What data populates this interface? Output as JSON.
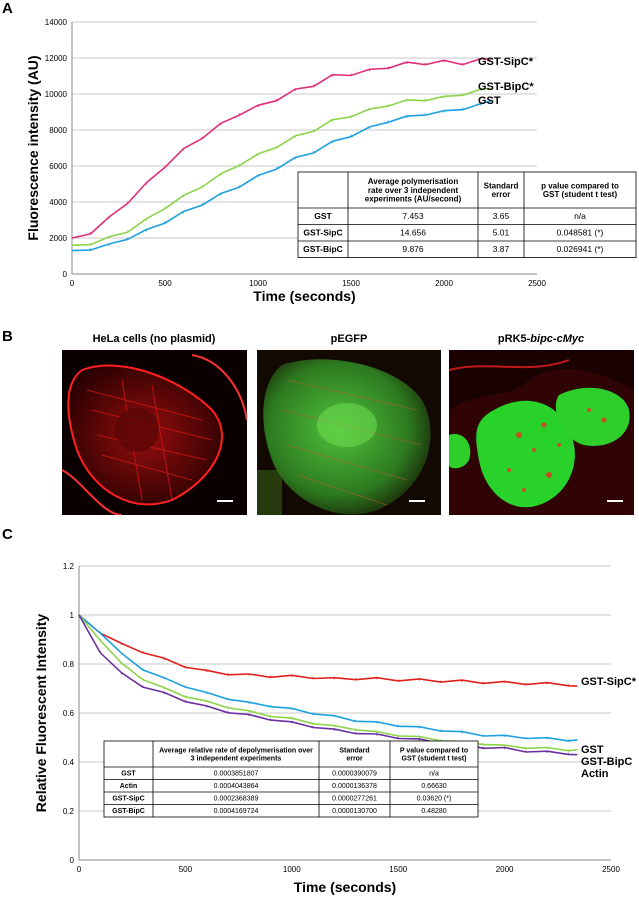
{
  "figure": {
    "panels": {
      "a": "A",
      "b": "B",
      "c": "C"
    }
  },
  "colors": {
    "magenta": "#e0307a",
    "green": "#8cd44a",
    "blue": "#1ea0e0",
    "red": "#e0201c",
    "purple": "#6a2fa0",
    "grid": "#c8c8c8"
  },
  "chart_data": [
    {
      "type": "line",
      "panel": "A",
      "title": "",
      "xlabel": "Time (seconds)",
      "ylabel": "Fluorescence intensity (AU)",
      "xlim": [
        0,
        2500
      ],
      "ylim": [
        0,
        14000
      ],
      "x_ticks": [
        "0",
        "500",
        "1000",
        "1500",
        "2000",
        "2500"
      ],
      "y_ticks": [
        "0",
        "2000",
        "4000",
        "6000",
        "8000",
        "10000",
        "12000",
        "14000"
      ],
      "series": [
        {
          "name": "GST-SipC*",
          "color": "#e0307a",
          "x": [
            0,
            100,
            200,
            300,
            400,
            500,
            600,
            700,
            800,
            900,
            1000,
            1100,
            1200,
            1300,
            1400,
            1500,
            1600,
            1700,
            1800,
            1900,
            2000,
            2100,
            2200,
            2250
          ],
          "y": [
            2000,
            2300,
            3100,
            4000,
            5000,
            6000,
            6900,
            7600,
            8300,
            8900,
            9300,
            9700,
            10200,
            10500,
            11000,
            11100,
            11300,
            11500,
            11700,
            11700,
            11800,
            11700,
            11900,
            11900
          ]
        },
        {
          "name": "GST-BipC*",
          "color": "#8cd44a",
          "x": [
            0,
            100,
            200,
            300,
            400,
            500,
            600,
            700,
            800,
            900,
            1000,
            1100,
            1200,
            1300,
            1400,
            1500,
            1600,
            1700,
            1800,
            1900,
            2000,
            2100,
            2200,
            2250
          ],
          "y": [
            1600,
            1700,
            2000,
            2400,
            3000,
            3700,
            4300,
            4900,
            5500,
            6100,
            6600,
            7100,
            7600,
            8000,
            8500,
            8800,
            9100,
            9400,
            9600,
            9700,
            9800,
            10000,
            10200,
            10300
          ]
        },
        {
          "name": "GST",
          "color": "#1ea0e0",
          "x": [
            0,
            100,
            200,
            300,
            400,
            500,
            600,
            700,
            800,
            900,
            1000,
            1100,
            1200,
            1300,
            1400,
            1500,
            1600,
            1700,
            1800,
            1900,
            2000,
            2100,
            2200,
            2250
          ],
          "y": [
            1300,
            1400,
            1600,
            2000,
            2400,
            2900,
            3400,
            3900,
            4400,
            4900,
            5400,
            5900,
            6400,
            6800,
            7300,
            7700,
            8100,
            8500,
            8700,
            8900,
            9000,
            9200,
            9400,
            9600
          ]
        }
      ],
      "table": {
        "headers": [
          "",
          "Average polymerisation rate over 3 independent experiments (AU/second)",
          "Standard error",
          "p value compared to GST (student t test)"
        ],
        "rows": [
          [
            "GST",
            "7.453",
            "3.65",
            "n/a"
          ],
          [
            "GST-SipC",
            "14.656",
            "5.01",
            "0.048581 (*)"
          ],
          [
            "GST-BipC",
            "9.876",
            "3.87",
            "0.026941 (*)"
          ]
        ]
      }
    },
    {
      "type": "line",
      "panel": "C",
      "title": "",
      "xlabel": "Time (seconds)",
      "ylabel": "Relative Fluorescent Intensity",
      "xlim": [
        0,
        2500
      ],
      "ylim": [
        0,
        1.2
      ],
      "x_ticks": [
        "0",
        "500",
        "1000",
        "1500",
        "2000",
        "2500"
      ],
      "y_ticks": [
        "0",
        "0.2",
        "0.4",
        "0.6",
        "0.8",
        "1",
        "1.2"
      ],
      "series": [
        {
          "name": "GST-SipC*",
          "color": "#e0201c",
          "x": [
            0,
            100,
            200,
            300,
            400,
            500,
            600,
            700,
            800,
            900,
            1000,
            1100,
            1200,
            1300,
            1400,
            1500,
            1600,
            1700,
            1800,
            1900,
            2000,
            2100,
            2200,
            2300,
            2340
          ],
          "y": [
            1.0,
            0.93,
            0.88,
            0.85,
            0.82,
            0.79,
            0.77,
            0.76,
            0.755,
            0.75,
            0.75,
            0.745,
            0.74,
            0.74,
            0.74,
            0.735,
            0.735,
            0.73,
            0.73,
            0.725,
            0.725,
            0.72,
            0.72,
            0.715,
            0.71
          ]
        },
        {
          "name": "GST",
          "color": "#1ea0e0",
          "x": [
            0,
            100,
            200,
            300,
            400,
            500,
            600,
            700,
            800,
            900,
            1000,
            1100,
            1200,
            1300,
            1400,
            1500,
            1600,
            1700,
            1800,
            1900,
            2000,
            2100,
            2200,
            2300,
            2340
          ],
          "y": [
            1.0,
            0.93,
            0.84,
            0.78,
            0.74,
            0.71,
            0.68,
            0.66,
            0.64,
            0.63,
            0.615,
            0.6,
            0.585,
            0.57,
            0.56,
            0.55,
            0.54,
            0.53,
            0.52,
            0.51,
            0.505,
            0.5,
            0.495,
            0.49,
            0.49
          ]
        },
        {
          "name": "GST-BipC",
          "color": "#8cd44a",
          "x": [
            0,
            100,
            200,
            300,
            400,
            500,
            600,
            700,
            800,
            900,
            1000,
            1100,
            1200,
            1300,
            1400,
            1500,
            1600,
            1700,
            1800,
            1900,
            2000,
            2100,
            2200,
            2300,
            2340
          ],
          "y": [
            1.0,
            0.9,
            0.8,
            0.74,
            0.7,
            0.67,
            0.645,
            0.625,
            0.605,
            0.59,
            0.575,
            0.56,
            0.545,
            0.535,
            0.52,
            0.51,
            0.5,
            0.49,
            0.48,
            0.475,
            0.465,
            0.46,
            0.455,
            0.45,
            0.45
          ]
        },
        {
          "name": "Actin",
          "color": "#6a2fa0",
          "x": [
            0,
            100,
            200,
            300,
            400,
            500,
            600,
            700,
            800,
            900,
            1000,
            1100,
            1200,
            1300,
            1400,
            1500,
            1600,
            1700,
            1800,
            1900,
            2000,
            2100,
            2200,
            2300,
            2340
          ],
          "y": [
            1.0,
            0.85,
            0.76,
            0.71,
            0.68,
            0.65,
            0.625,
            0.605,
            0.59,
            0.575,
            0.56,
            0.545,
            0.53,
            0.52,
            0.51,
            0.5,
            0.49,
            0.48,
            0.47,
            0.46,
            0.455,
            0.445,
            0.44,
            0.435,
            0.43
          ]
        }
      ],
      "table": {
        "headers": [
          "",
          "Average relative rate of depolymerisation over 3 independent experiments",
          "Standard error",
          "P value compared to GST (student t test)"
        ],
        "rows": [
          [
            "GST",
            "0.0003851807",
            "0.0000390079",
            "n/a"
          ],
          [
            "Actin",
            "0.0004043864",
            "0.0000136378",
            "0.66630"
          ],
          [
            "GST-SipC",
            "0.0002368389",
            "0.0000277261",
            "0.03620 (*)"
          ],
          [
            "GST-BipC",
            "0.0004169724",
            "0.0000130700",
            "0.48280"
          ]
        ]
      }
    }
  ],
  "micrographs": [
    {
      "label": "HeLa cells (no plasmid)",
      "label_italic": ""
    },
    {
      "label": "pEGFP",
      "label_italic": ""
    },
    {
      "label": "pRK5-",
      "label_italic": "bipc-cMyc"
    }
  ]
}
